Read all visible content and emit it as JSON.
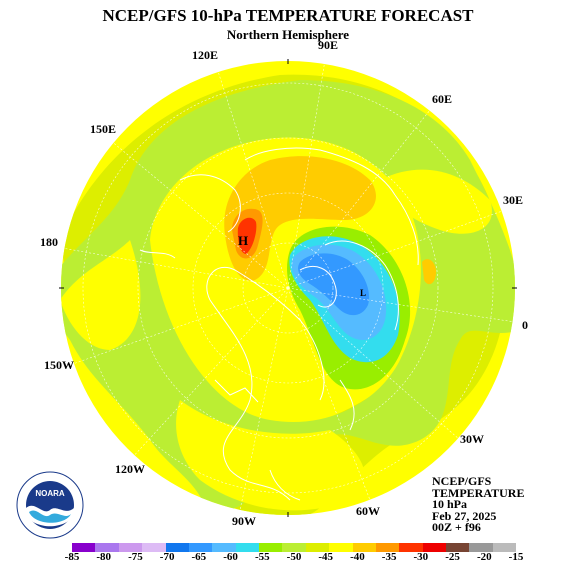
{
  "header": {
    "title": "NCEP/GFS 10-hPa TEMPERATURE FORECAST",
    "subtitle": "Northern Hemisphere"
  },
  "longitude_labels": [
    {
      "id": "90e",
      "text": "90E"
    },
    {
      "id": "120e",
      "text": "120E"
    },
    {
      "id": "60e",
      "text": "60E"
    },
    {
      "id": "150e",
      "text": "150E"
    },
    {
      "id": "30e",
      "text": "30E"
    },
    {
      "id": "180",
      "text": "180"
    },
    {
      "id": "0",
      "text": "0"
    },
    {
      "id": "150w",
      "text": "150W"
    },
    {
      "id": "30w",
      "text": "30W"
    },
    {
      "id": "120w",
      "text": "120W"
    },
    {
      "id": "60w",
      "text": "60W"
    },
    {
      "id": "90w",
      "text": "90W"
    }
  ],
  "map": {
    "high_marker": "H",
    "low_marker": "L"
  },
  "info_block": {
    "line1": "NCEP/GFS",
    "line2": "TEMPERATURE",
    "line3": "10 hPa",
    "line4": "Feb 27, 2025",
    "line5": "00Z + f96"
  },
  "logo": {
    "text": "NOARA",
    "icon": "noaa-logo-icon"
  },
  "legend": {
    "colors": [
      "#8800cc",
      "#aa77ee",
      "#cc99ee",
      "#ddbbf5",
      "#1177ee",
      "#3399ff",
      "#55bbff",
      "#33ddee",
      "#99ee00",
      "#bbee33",
      "#ddee00",
      "#ffff00",
      "#ffcc00",
      "#ff9900",
      "#ff3300",
      "#ee0000",
      "#774433",
      "#999999",
      "#bbbbbb"
    ],
    "ticks": [
      "-85",
      "-80",
      "-75",
      "-70",
      "-65",
      "-60",
      "-55",
      "-50",
      "-45",
      "-40",
      "-35",
      "-30",
      "-25",
      "-20",
      "-15"
    ]
  }
}
